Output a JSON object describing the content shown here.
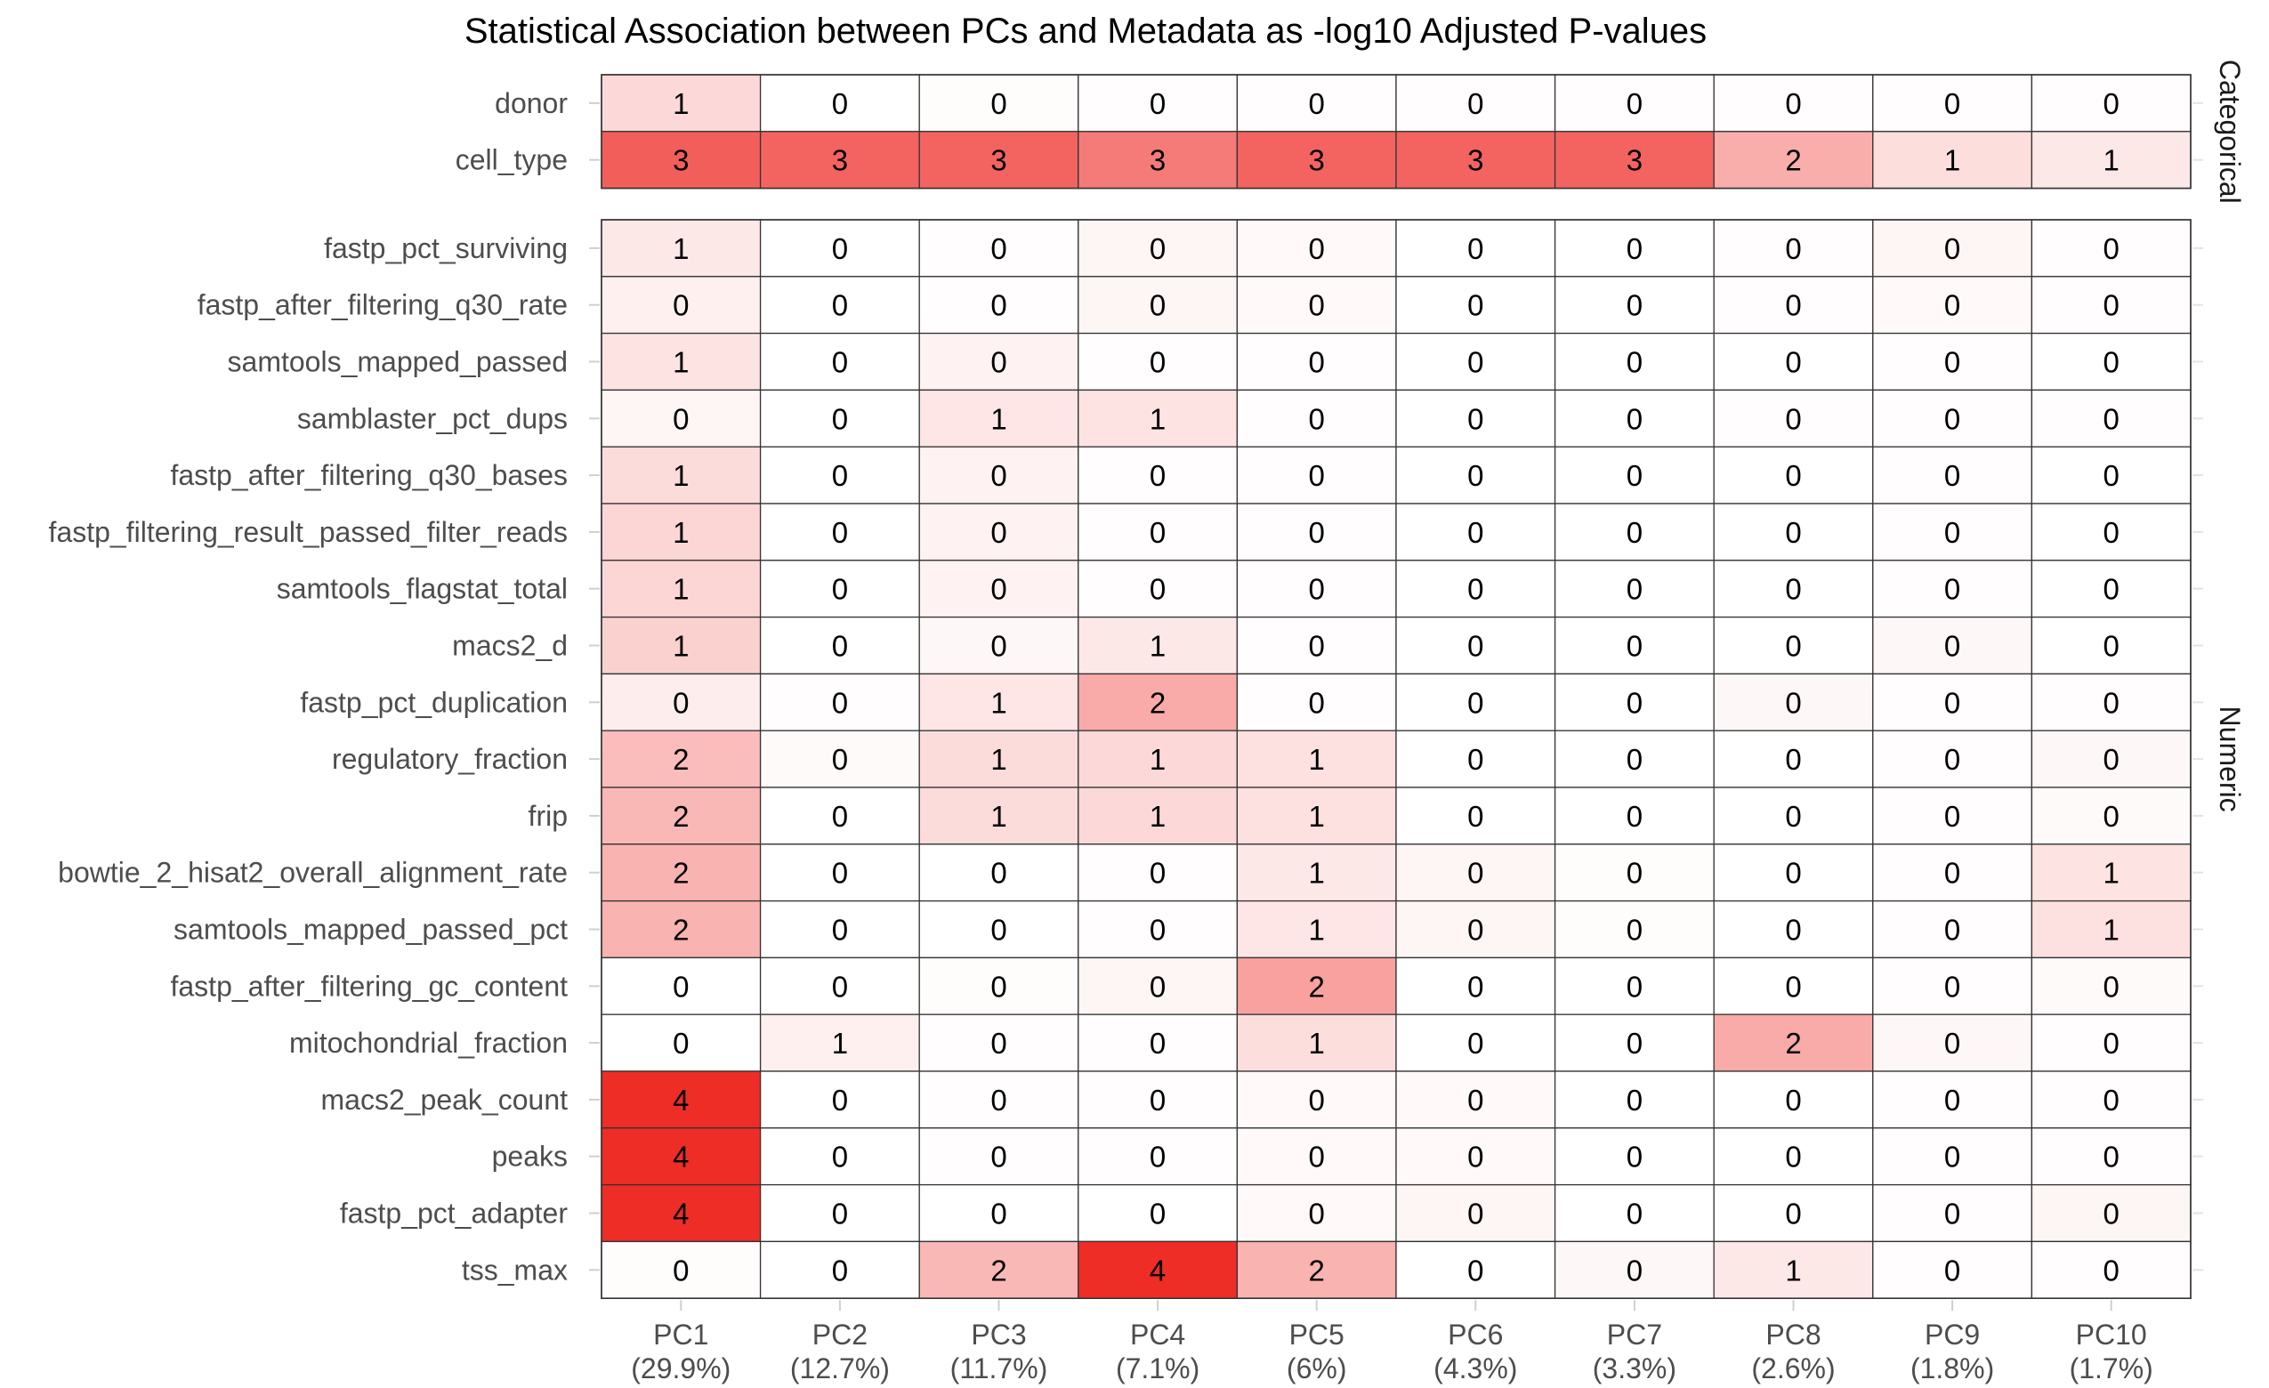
{
  "chart_data": {
    "type": "heatmap",
    "title": "Statistical Association between PCs and Metadata as -log10 Adjusted P-values",
    "x_categories": [
      "PC1",
      "PC2",
      "PC3",
      "PC4",
      "PC5",
      "PC6",
      "PC7",
      "PC8",
      "PC9",
      "PC10"
    ],
    "x_variance": [
      "(29.9%)",
      "(12.7%)",
      "(11.7%)",
      "(7.1%)",
      "(6%)",
      "(4.3%)",
      "(3.3%)",
      "(2.6%)",
      "(1.8%)",
      "(1.7%)"
    ],
    "color_scale": {
      "low": "#ffffff",
      "high": "#ee2a24",
      "min": 0,
      "max": 4.2
    },
    "panels": [
      {
        "name": "Categorical",
        "rows": [
          {
            "label": "donor",
            "display": [
              1,
              0,
              0,
              0,
              0,
              0,
              0,
              0,
              0,
              0
            ],
            "intensity": [
              0.75,
              0,
              0.05,
              0.03,
              0.03,
              0.03,
              0.03,
              0.03,
              0.03,
              0.03
            ]
          },
          {
            "label": "cell_type",
            "display": [
              3,
              3,
              3,
              3,
              3,
              3,
              3,
              2,
              1,
              1
            ],
            "intensity": [
              3.15,
              3.05,
              3.05,
              2.6,
              3.05,
              3.05,
              3.05,
              1.6,
              0.65,
              0.45
            ]
          }
        ]
      },
      {
        "name": "Numeric",
        "rows": [
          {
            "label": "fastp_pct_surviving",
            "display": [
              1,
              0,
              0,
              0,
              0,
              0,
              0,
              0,
              0,
              0
            ],
            "intensity": [
              0.45,
              0,
              0.03,
              0.2,
              0.12,
              0,
              0,
              0.03,
              0.2,
              0.03
            ]
          },
          {
            "label": "fastp_after_filtering_q30_rate",
            "display": [
              0,
              0,
              0,
              0,
              0,
              0,
              0,
              0,
              0,
              0
            ],
            "intensity": [
              0.3,
              0,
              0.03,
              0.2,
              0.12,
              0,
              0,
              0.03,
              0.12,
              0.03
            ]
          },
          {
            "label": "samtools_mapped_passed",
            "display": [
              1,
              0,
              0,
              0,
              0,
              0,
              0,
              0,
              0,
              0
            ],
            "intensity": [
              0.55,
              0,
              0.25,
              0.03,
              0.03,
              0,
              0,
              0,
              0.03,
              0
            ]
          },
          {
            "label": "samblaster_pct_dups",
            "display": [
              0,
              0,
              1,
              1,
              0,
              0,
              0,
              0,
              0,
              0
            ],
            "intensity": [
              0.2,
              0,
              0.5,
              0.55,
              0.03,
              0,
              0,
              0.03,
              0.03,
              0.03
            ]
          },
          {
            "label": "fastp_after_filtering_q30_bases",
            "display": [
              1,
              0,
              0,
              0,
              0,
              0,
              0,
              0,
              0,
              0
            ],
            "intensity": [
              0.7,
              0,
              0.25,
              0.03,
              0.03,
              0,
              0,
              0,
              0.03,
              0
            ]
          },
          {
            "label": "fastp_filtering_result_passed_filter_reads",
            "display": [
              1,
              0,
              0,
              0,
              0,
              0,
              0,
              0,
              0,
              0
            ],
            "intensity": [
              0.8,
              0,
              0.25,
              0.03,
              0.03,
              0,
              0,
              0,
              0.03,
              0
            ]
          },
          {
            "label": "samtools_flagstat_total",
            "display": [
              1,
              0,
              0,
              0,
              0,
              0,
              0,
              0,
              0,
              0
            ],
            "intensity": [
              0.8,
              0,
              0.25,
              0.03,
              0.03,
              0,
              0,
              0,
              0.03,
              0
            ]
          },
          {
            "label": "macs2_d",
            "display": [
              1,
              0,
              0,
              1,
              0,
              0,
              0,
              0,
              0,
              0
            ],
            "intensity": [
              0.9,
              0,
              0.15,
              0.45,
              0.03,
              0,
              0,
              0,
              0.15,
              0
            ]
          },
          {
            "label": "fastp_pct_duplication",
            "display": [
              0,
              0,
              1,
              2,
              0,
              0,
              0,
              0,
              0,
              0
            ],
            "intensity": [
              0.35,
              0.03,
              0.5,
              1.65,
              0.03,
              0,
              0,
              0.15,
              0.03,
              0.03
            ]
          },
          {
            "label": "regulatory_fraction",
            "display": [
              2,
              0,
              1,
              1,
              1,
              0,
              0,
              0,
              0,
              0
            ],
            "intensity": [
              1.3,
              0.1,
              0.7,
              0.75,
              0.6,
              0,
              0,
              0,
              0.03,
              0.15
            ]
          },
          {
            "label": "frip",
            "display": [
              2,
              0,
              1,
              1,
              1,
              0,
              0,
              0,
              0,
              0
            ],
            "intensity": [
              1.4,
              0,
              0.7,
              0.75,
              0.6,
              0,
              0,
              0,
              0.03,
              0.1
            ]
          },
          {
            "label": "bowtie_2_hisat2_overall_alignment_rate",
            "display": [
              2,
              0,
              0,
              0,
              1,
              0,
              0,
              0,
              0,
              1
            ],
            "intensity": [
              1.5,
              0,
              0,
              0.03,
              0.45,
              0.2,
              0.05,
              0,
              0.03,
              0.55
            ]
          },
          {
            "label": "samtools_mapped_passed_pct",
            "display": [
              2,
              0,
              0,
              0,
              1,
              0,
              0,
              0,
              0,
              1
            ],
            "intensity": [
              1.5,
              0,
              0,
              0.03,
              0.5,
              0.2,
              0.05,
              0,
              0.03,
              0.6
            ]
          },
          {
            "label": "fastp_after_filtering_gc_content",
            "display": [
              0,
              0,
              0,
              0,
              2,
              0,
              0,
              0,
              0,
              0
            ],
            "intensity": [
              0,
              0,
              0.05,
              0.2,
              1.85,
              0,
              0,
              0,
              0.03,
              0.1
            ]
          },
          {
            "label": "mitochondrial_fraction",
            "display": [
              0,
              1,
              0,
              0,
              1,
              0,
              0,
              2,
              0,
              0
            ],
            "intensity": [
              0,
              0.3,
              0.03,
              0.03,
              0.65,
              0,
              0,
              1.65,
              0.15,
              0.03
            ]
          },
          {
            "label": "macs2_peak_count",
            "display": [
              4,
              0,
              0,
              0,
              0,
              0,
              0,
              0,
              0,
              0
            ],
            "intensity": [
              4.15,
              0,
              0.03,
              0.03,
              0.12,
              0.12,
              0,
              0,
              0.03,
              0.03
            ]
          },
          {
            "label": "peaks",
            "display": [
              4,
              0,
              0,
              0,
              0,
              0,
              0,
              0,
              0,
              0
            ],
            "intensity": [
              4.15,
              0,
              0.03,
              0.03,
              0.12,
              0.12,
              0,
              0,
              0.03,
              0.03
            ]
          },
          {
            "label": "fastp_pct_adapter",
            "display": [
              4,
              0,
              0,
              0,
              0,
              0,
              0,
              0,
              0,
              0
            ],
            "intensity": [
              4.15,
              0,
              0,
              0,
              0.12,
              0.2,
              0,
              0,
              0.03,
              0.2
            ]
          },
          {
            "label": "tss_max",
            "display": [
              0,
              0,
              2,
              4,
              2,
              0,
              0,
              1,
              0,
              0
            ],
            "intensity": [
              0.05,
              0,
              1.4,
              4.15,
              1.5,
              0,
              0.15,
              0.45,
              0.03,
              0.03
            ]
          }
        ]
      }
    ]
  }
}
